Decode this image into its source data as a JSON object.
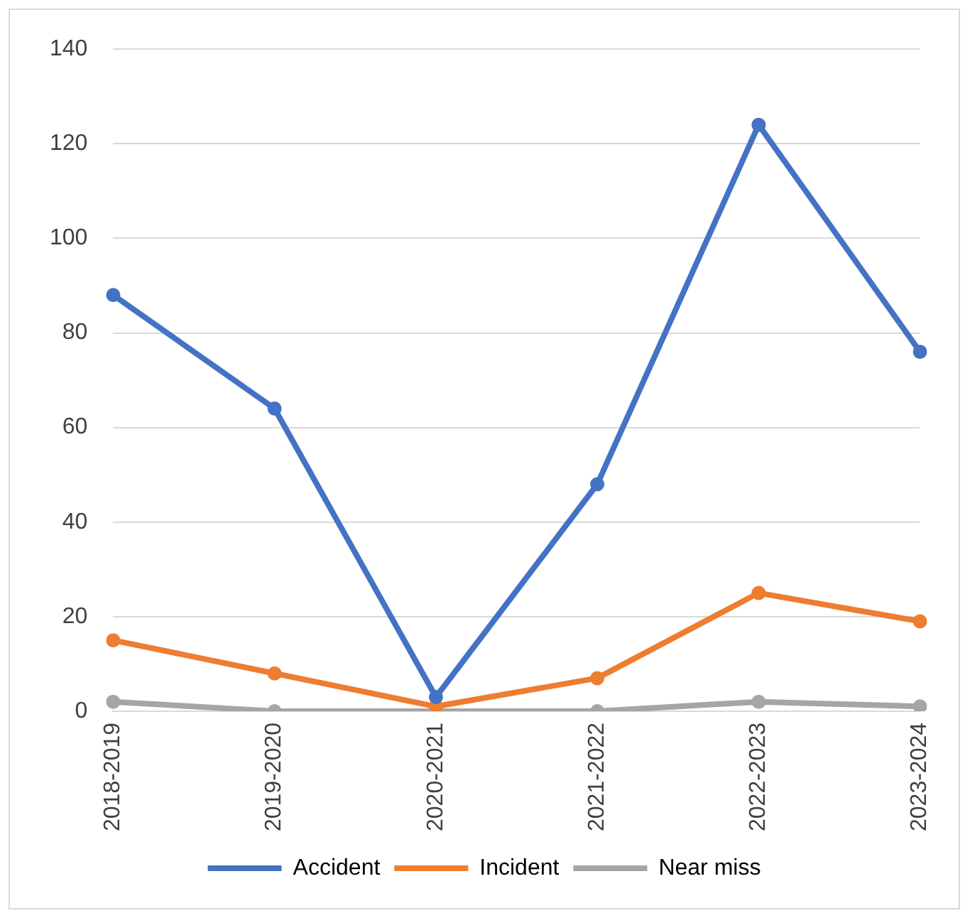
{
  "chart_data": {
    "type": "line",
    "categories": [
      "2018-2019",
      "2019-2020",
      "2020-2021",
      "2021-2022",
      "2022-2023",
      "2023-2024"
    ],
    "series": [
      {
        "name": "Accident",
        "color": "#4472c4",
        "values": [
          88,
          64,
          3,
          48,
          124,
          76
        ]
      },
      {
        "name": "Incident",
        "color": "#ed7d31",
        "values": [
          15,
          8,
          1,
          7,
          25,
          19
        ]
      },
      {
        "name": "Near miss",
        "color": "#a5a5a5",
        "values": [
          2,
          0,
          0,
          0,
          2,
          1
        ]
      }
    ],
    "ylim": [
      0,
      140
    ],
    "yticks": [
      0,
      20,
      40,
      60,
      80,
      100,
      120,
      140
    ],
    "grid": "y",
    "legend": "bottom",
    "marker": "circle",
    "line_style": "solid"
  }
}
